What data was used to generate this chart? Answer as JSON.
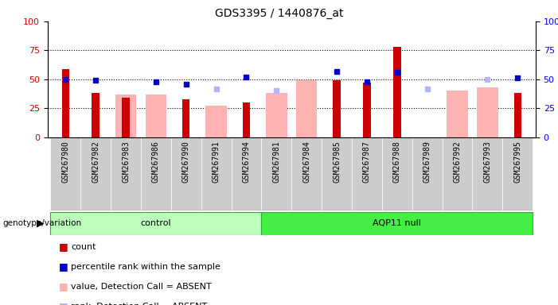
{
  "title": "GDS3395 / 1440876_at",
  "samples": [
    "GSM267980",
    "GSM267982",
    "GSM267983",
    "GSM267986",
    "GSM267990",
    "GSM267991",
    "GSM267994",
    "GSM267981",
    "GSM267984",
    "GSM267985",
    "GSM267987",
    "GSM267988",
    "GSM267989",
    "GSM267992",
    "GSM267993",
    "GSM267995"
  ],
  "count_values": [
    59,
    38,
    34,
    null,
    33,
    null,
    30,
    null,
    null,
    49,
    47,
    78,
    null,
    null,
    null,
    38
  ],
  "percentile_rank": [
    50,
    49,
    null,
    48,
    46,
    null,
    52,
    null,
    null,
    57,
    48,
    56,
    null,
    null,
    null,
    51
  ],
  "value_absent": [
    null,
    null,
    37,
    37,
    null,
    27,
    null,
    38,
    49,
    null,
    null,
    null,
    null,
    40,
    43,
    null
  ],
  "rank_absent": [
    null,
    null,
    null,
    null,
    null,
    42,
    null,
    40,
    null,
    null,
    null,
    null,
    42,
    null,
    50,
    null
  ],
  "control_count": 7,
  "aqp11_count": 9,
  "ylim": [
    0,
    100
  ],
  "yticks": [
    0,
    25,
    50,
    75,
    100
  ],
  "count_color": "#cc0000",
  "percentile_color": "#0000cc",
  "value_absent_color": "#ffb3b3",
  "rank_absent_color": "#b3b3ff",
  "control_bg": "#bbffbb",
  "aqp11_bg": "#44ee44",
  "tick_bg": "#cccccc"
}
